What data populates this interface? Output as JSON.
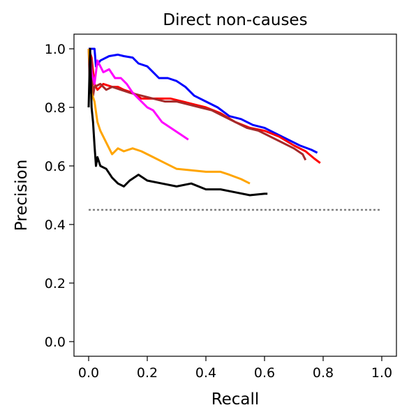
{
  "chart_data": {
    "type": "line",
    "title": "Direct non-causes",
    "xlabel": "Recall",
    "ylabel": "Precision",
    "xlim": [
      -0.05,
      1.05
    ],
    "ylim": [
      -0.05,
      1.05
    ],
    "xticks": [
      0.0,
      0.2,
      0.4,
      0.6,
      0.8,
      1.0
    ],
    "xtick_labels": [
      "0.0",
      "0.2",
      "0.4",
      "0.6",
      "0.8",
      "1.0"
    ],
    "yticks": [
      0.0,
      0.2,
      0.4,
      0.6,
      0.8,
      1.0
    ],
    "ytick_labels": [
      "0.0",
      "0.2",
      "0.4",
      "0.6",
      "0.8",
      "1.0"
    ],
    "grid": false,
    "series": [
      {
        "color": "#0000ff",
        "style": "solid",
        "points": [
          [
            0.0,
            1.0
          ],
          [
            0.02,
            1.0
          ],
          [
            0.025,
            0.94
          ],
          [
            0.04,
            0.96
          ],
          [
            0.07,
            0.975
          ],
          [
            0.1,
            0.98
          ],
          [
            0.12,
            0.975
          ],
          [
            0.15,
            0.97
          ],
          [
            0.17,
            0.95
          ],
          [
            0.2,
            0.94
          ],
          [
            0.22,
            0.92
          ],
          [
            0.24,
            0.9
          ],
          [
            0.27,
            0.9
          ],
          [
            0.3,
            0.89
          ],
          [
            0.33,
            0.87
          ],
          [
            0.36,
            0.84
          ],
          [
            0.4,
            0.82
          ],
          [
            0.44,
            0.8
          ],
          [
            0.48,
            0.77
          ],
          [
            0.52,
            0.76
          ],
          [
            0.56,
            0.74
          ],
          [
            0.6,
            0.73
          ],
          [
            0.64,
            0.71
          ],
          [
            0.68,
            0.69
          ],
          [
            0.72,
            0.67
          ],
          [
            0.76,
            0.655
          ],
          [
            0.78,
            0.645
          ]
        ]
      },
      {
        "color": "#ff0000",
        "style": "solid",
        "points": [
          [
            0.0,
            1.0
          ],
          [
            0.01,
            0.97
          ],
          [
            0.02,
            0.88
          ],
          [
            0.03,
            0.86
          ],
          [
            0.05,
            0.88
          ],
          [
            0.08,
            0.87
          ],
          [
            0.1,
            0.87
          ],
          [
            0.12,
            0.86
          ],
          [
            0.15,
            0.85
          ],
          [
            0.18,
            0.83
          ],
          [
            0.2,
            0.83
          ],
          [
            0.25,
            0.83
          ],
          [
            0.28,
            0.83
          ],
          [
            0.32,
            0.82
          ],
          [
            0.36,
            0.81
          ],
          [
            0.4,
            0.8
          ],
          [
            0.45,
            0.78
          ],
          [
            0.5,
            0.75
          ],
          [
            0.55,
            0.73
          ],
          [
            0.6,
            0.72
          ],
          [
            0.65,
            0.7
          ],
          [
            0.7,
            0.67
          ],
          [
            0.74,
            0.65
          ],
          [
            0.77,
            0.625
          ],
          [
            0.79,
            0.61
          ]
        ]
      },
      {
        "color": "#a52a2a",
        "style": "solid",
        "points": [
          [
            0.0,
            1.0
          ],
          [
            0.005,
            0.85
          ],
          [
            0.01,
            0.96
          ],
          [
            0.015,
            0.84
          ],
          [
            0.02,
            0.87
          ],
          [
            0.04,
            0.88
          ],
          [
            0.06,
            0.86
          ],
          [
            0.08,
            0.87
          ],
          [
            0.11,
            0.86
          ],
          [
            0.14,
            0.85
          ],
          [
            0.18,
            0.84
          ],
          [
            0.22,
            0.83
          ],
          [
            0.26,
            0.82
          ],
          [
            0.3,
            0.82
          ],
          [
            0.34,
            0.81
          ],
          [
            0.38,
            0.8
          ],
          [
            0.42,
            0.79
          ],
          [
            0.46,
            0.77
          ],
          [
            0.5,
            0.75
          ],
          [
            0.54,
            0.73
          ],
          [
            0.58,
            0.72
          ],
          [
            0.62,
            0.7
          ],
          [
            0.66,
            0.68
          ],
          [
            0.7,
            0.66
          ],
          [
            0.73,
            0.64
          ],
          [
            0.74,
            0.62
          ]
        ]
      },
      {
        "color": "#ff00ff",
        "style": "solid",
        "points": [
          [
            0.0,
            1.0
          ],
          [
            0.01,
            0.92
          ],
          [
            0.02,
            0.88
          ],
          [
            0.03,
            0.96
          ],
          [
            0.04,
            0.94
          ],
          [
            0.05,
            0.92
          ],
          [
            0.07,
            0.93
          ],
          [
            0.09,
            0.9
          ],
          [
            0.11,
            0.9
          ],
          [
            0.13,
            0.88
          ],
          [
            0.15,
            0.85
          ],
          [
            0.17,
            0.83
          ],
          [
            0.2,
            0.8
          ],
          [
            0.22,
            0.79
          ],
          [
            0.25,
            0.75
          ],
          [
            0.28,
            0.73
          ],
          [
            0.31,
            0.71
          ],
          [
            0.34,
            0.69
          ]
        ]
      },
      {
        "color": "#ffa500",
        "style": "solid",
        "points": [
          [
            0.0,
            1.0
          ],
          [
            0.01,
            0.85
          ],
          [
            0.02,
            0.82
          ],
          [
            0.03,
            0.75
          ],
          [
            0.04,
            0.72
          ],
          [
            0.06,
            0.68
          ],
          [
            0.08,
            0.64
          ],
          [
            0.1,
            0.66
          ],
          [
            0.12,
            0.65
          ],
          [
            0.15,
            0.66
          ],
          [
            0.18,
            0.65
          ],
          [
            0.22,
            0.63
          ],
          [
            0.26,
            0.61
          ],
          [
            0.3,
            0.59
          ],
          [
            0.35,
            0.585
          ],
          [
            0.4,
            0.58
          ],
          [
            0.45,
            0.58
          ],
          [
            0.48,
            0.57
          ],
          [
            0.52,
            0.555
          ],
          [
            0.55,
            0.54
          ]
        ]
      },
      {
        "color": "#000000",
        "style": "solid",
        "points": [
          [
            0.0,
            0.8
          ],
          [
            0.005,
            1.0
          ],
          [
            0.01,
            0.8
          ],
          [
            0.015,
            0.75
          ],
          [
            0.02,
            0.67
          ],
          [
            0.025,
            0.6
          ],
          [
            0.03,
            0.63
          ],
          [
            0.04,
            0.6
          ],
          [
            0.06,
            0.59
          ],
          [
            0.08,
            0.56
          ],
          [
            0.1,
            0.54
          ],
          [
            0.12,
            0.53
          ],
          [
            0.14,
            0.55
          ],
          [
            0.17,
            0.57
          ],
          [
            0.2,
            0.55
          ],
          [
            0.25,
            0.54
          ],
          [
            0.3,
            0.53
          ],
          [
            0.35,
            0.54
          ],
          [
            0.4,
            0.52
          ],
          [
            0.45,
            0.52
          ],
          [
            0.5,
            0.51
          ],
          [
            0.55,
            0.5
          ],
          [
            0.6,
            0.505
          ],
          [
            0.61,
            0.505
          ]
        ]
      },
      {
        "color": "#808080",
        "style": "dotted",
        "points": [
          [
            0.0,
            0.45
          ],
          [
            1.0,
            0.45
          ]
        ]
      }
    ]
  }
}
